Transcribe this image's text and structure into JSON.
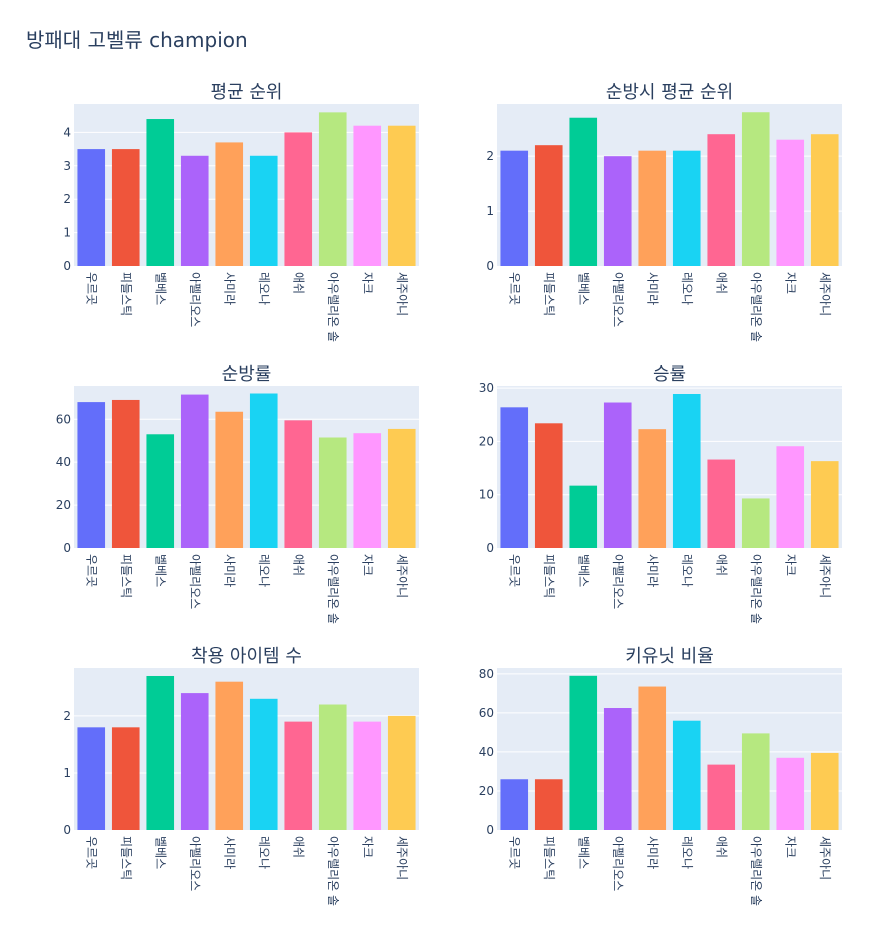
{
  "title": "방패대 고벨류 champion",
  "chart_data": [
    {
      "type": "bar",
      "title": "평균 순위",
      "categories": [
        "우르곳",
        "피들스틱",
        "벨베스",
        "아펠리오스",
        "사미라",
        "레오나",
        "애쉬",
        "아우렐리온 솔",
        "자크",
        "세주아니"
      ],
      "values": [
        3.5,
        3.5,
        4.4,
        3.3,
        3.7,
        3.3,
        4.0,
        4.6,
        4.2,
        4.2
      ],
      "ylim": [
        0,
        4.85
      ],
      "yticks": [
        "0",
        "1",
        "2",
        "3",
        "4"
      ],
      "ytick_values": [
        0,
        1,
        2,
        3,
        4
      ]
    },
    {
      "type": "bar",
      "title": "순방시 평균 순위",
      "categories": [
        "우르곳",
        "피들스틱",
        "벨베스",
        "아펠리오스",
        "사미라",
        "레오나",
        "애쉬",
        "아우렐리온 솔",
        "자크",
        "세주아니"
      ],
      "values": [
        2.1,
        2.2,
        2.7,
        2.0,
        2.1,
        2.1,
        2.4,
        2.8,
        2.3,
        2.4
      ],
      "ylim": [
        0,
        2.95
      ],
      "yticks": [
        "0",
        "1",
        "2"
      ],
      "ytick_values": [
        0,
        1,
        2
      ]
    },
    {
      "type": "bar",
      "title": "순방률",
      "categories": [
        "우르곳",
        "피들스틱",
        "벨베스",
        "아펠리오스",
        "사미라",
        "레오나",
        "애쉬",
        "아우렐리온 솔",
        "자크",
        "세주아니"
      ],
      "values": [
        68,
        69,
        53,
        71.5,
        63.5,
        72,
        59.5,
        51.5,
        53.5,
        55.5
      ],
      "ylim": [
        0,
        75.5
      ],
      "yticks": [
        "0",
        "20",
        "40",
        "60"
      ],
      "ytick_values": [
        0,
        20,
        40,
        60
      ]
    },
    {
      "type": "bar",
      "title": "승률",
      "categories": [
        "우르곳",
        "피들스틱",
        "벨베스",
        "아펠리오스",
        "사미라",
        "레오나",
        "애쉬",
        "아우렐리온 솔",
        "자크",
        "세주아니"
      ],
      "values": [
        26.4,
        23.4,
        11.7,
        27.3,
        22.3,
        28.9,
        16.6,
        9.3,
        19.1,
        16.3
      ],
      "ylim": [
        0,
        30.4
      ],
      "yticks": [
        "0",
        "10",
        "20",
        "30"
      ],
      "ytick_values": [
        0,
        10,
        20,
        30
      ]
    },
    {
      "type": "bar",
      "title": "착용 아이템 수",
      "categories": [
        "우르곳",
        "피들스틱",
        "벨베스",
        "아펠리오스",
        "사미라",
        "레오나",
        "애쉬",
        "아우렐리온 솔",
        "자크",
        "세주아니"
      ],
      "values": [
        1.8,
        1.8,
        2.7,
        2.4,
        2.6,
        2.3,
        1.9,
        2.2,
        1.9,
        2.0
      ],
      "ylim": [
        0,
        2.84
      ],
      "yticks": [
        "0",
        "1",
        "2"
      ],
      "ytick_values": [
        0,
        1,
        2
      ]
    },
    {
      "type": "bar",
      "title": "키유닛 비율",
      "categories": [
        "우르곳",
        "피들스틱",
        "벨베스",
        "아펠리오스",
        "사미라",
        "레오나",
        "애쉬",
        "아우렐리온 솔",
        "자크",
        "세주아니"
      ],
      "values": [
        26,
        26,
        79,
        62.5,
        73.5,
        56,
        33.5,
        49.5,
        37,
        39.5
      ],
      "ylim": [
        0,
        83
      ],
      "yticks": [
        "0",
        "20",
        "40",
        "60",
        "80"
      ],
      "ytick_values": [
        0,
        20,
        40,
        60,
        80
      ]
    }
  ],
  "colors": [
    "#636efa",
    "#EF553B",
    "#00cc96",
    "#ab63fa",
    "#FFA15A",
    "#19d3f3",
    "#FF6692",
    "#B6E880",
    "#FF97FF",
    "#FECB52"
  ],
  "plot_bg": "#e5ecf6",
  "grid_color": "#ffffff"
}
